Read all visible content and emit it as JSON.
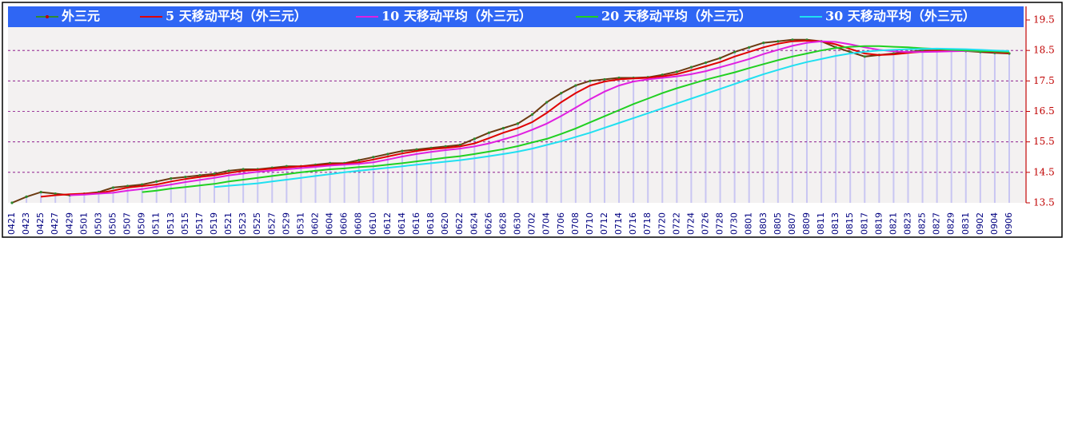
{
  "chart_data": {
    "type": "line",
    "categories": [
      "0421",
      "0423",
      "0425",
      "0427",
      "0429",
      "0501",
      "0503",
      "0505",
      "0507",
      "0509",
      "0511",
      "0513",
      "0515",
      "0517",
      "0519",
      "0521",
      "0523",
      "0525",
      "0527",
      "0529",
      "0531",
      "0602",
      "0604",
      "0606",
      "0608",
      "0610",
      "0612",
      "0614",
      "0616",
      "0618",
      "0620",
      "0622",
      "0624",
      "0626",
      "0628",
      "0630",
      "0702",
      "0704",
      "0706",
      "0708",
      "0710",
      "0712",
      "0714",
      "0716",
      "0718",
      "0720",
      "0722",
      "0724",
      "0726",
      "0728",
      "0730",
      "0801",
      "0803",
      "0805",
      "0807",
      "0809",
      "0811",
      "0813",
      "0815",
      "0817",
      "0819",
      "0821",
      "0823",
      "0825",
      "0827",
      "0829",
      "0831",
      "0902",
      "0904",
      "0906"
    ],
    "series": [
      {
        "name": "外三元",
        "color": "#6b3a10",
        "marker_color": "#2e8b2e",
        "values": [
          13.5,
          13.7,
          13.85,
          13.8,
          13.75,
          13.8,
          13.85,
          14.0,
          14.05,
          14.1,
          14.2,
          14.3,
          14.35,
          14.4,
          14.45,
          14.55,
          14.6,
          14.6,
          14.65,
          14.7,
          14.7,
          14.75,
          14.8,
          14.8,
          14.9,
          15.0,
          15.1,
          15.2,
          15.25,
          15.3,
          15.35,
          15.4,
          15.6,
          15.8,
          15.95,
          16.1,
          16.4,
          16.8,
          17.1,
          17.35,
          17.5,
          17.55,
          17.6,
          17.6,
          17.62,
          17.7,
          17.8,
          17.95,
          18.1,
          18.25,
          18.45,
          18.6,
          18.75,
          18.8,
          18.85,
          18.85,
          18.8,
          18.6,
          18.45,
          18.3,
          18.35,
          18.4,
          18.45,
          18.5,
          18.5,
          18.5,
          18.48,
          18.45,
          18.42,
          18.4
        ]
      },
      {
        "name": "5 天移动平均（外三元）",
        "color": "#e00000",
        "values": [
          null,
          null,
          13.7,
          13.75,
          13.78,
          13.8,
          13.82,
          13.9,
          14.0,
          14.05,
          14.1,
          14.2,
          14.28,
          14.35,
          14.4,
          14.48,
          14.55,
          14.58,
          14.62,
          14.66,
          14.7,
          14.72,
          14.76,
          14.78,
          14.83,
          14.92,
          15.02,
          15.12,
          15.2,
          15.26,
          15.3,
          15.35,
          15.45,
          15.62,
          15.8,
          15.95,
          16.15,
          16.45,
          16.8,
          17.1,
          17.35,
          17.48,
          17.55,
          17.58,
          17.6,
          17.65,
          17.72,
          17.85,
          17.98,
          18.12,
          18.3,
          18.45,
          18.6,
          18.72,
          18.8,
          18.82,
          18.8,
          18.7,
          18.55,
          18.4,
          18.35,
          18.37,
          18.42,
          18.46,
          18.48,
          18.5,
          18.5,
          18.48,
          18.45,
          18.42
        ]
      },
      {
        "name": "10 天移动平均（外三元）",
        "color": "#e020e0",
        "values": [
          null,
          null,
          null,
          null,
          13.75,
          13.77,
          13.8,
          13.83,
          13.9,
          13.95,
          14.03,
          14.1,
          14.18,
          14.25,
          14.32,
          14.4,
          14.46,
          14.52,
          14.56,
          14.6,
          14.64,
          14.68,
          14.72,
          14.75,
          14.78,
          14.83,
          14.92,
          15.02,
          15.1,
          15.17,
          15.23,
          15.28,
          15.35,
          15.45,
          15.58,
          15.72,
          15.9,
          16.1,
          16.35,
          16.62,
          16.9,
          17.15,
          17.35,
          17.48,
          17.55,
          17.6,
          17.65,
          17.72,
          17.82,
          17.95,
          18.08,
          18.22,
          18.38,
          18.52,
          18.65,
          18.75,
          18.8,
          18.78,
          18.7,
          18.6,
          18.52,
          18.47,
          18.45,
          18.45,
          18.46,
          18.47,
          18.48,
          18.48,
          18.47,
          18.45
        ]
      },
      {
        "name": "20 天移动平均（外三元）",
        "color": "#20d020",
        "values": [
          null,
          null,
          null,
          null,
          null,
          null,
          null,
          null,
          null,
          13.85,
          13.9,
          13.97,
          14.02,
          14.07,
          14.12,
          14.2,
          14.26,
          14.32,
          14.38,
          14.44,
          14.5,
          14.55,
          14.6,
          14.63,
          14.67,
          14.7,
          14.75,
          14.8,
          14.86,
          14.92,
          14.98,
          15.03,
          15.1,
          15.18,
          15.26,
          15.36,
          15.48,
          15.6,
          15.76,
          15.94,
          16.14,
          16.34,
          16.54,
          16.74,
          16.92,
          17.1,
          17.26,
          17.4,
          17.54,
          17.66,
          17.78,
          17.92,
          18.05,
          18.18,
          18.3,
          18.4,
          18.5,
          18.58,
          18.62,
          18.64,
          18.64,
          18.62,
          18.6,
          18.57,
          18.55,
          18.52,
          18.5,
          18.48,
          18.47,
          18.45
        ]
      },
      {
        "name": "30 天移动平均（外三元）",
        "color": "#20e0f0",
        "values": [
          null,
          null,
          null,
          null,
          null,
          null,
          null,
          null,
          null,
          null,
          null,
          null,
          null,
          null,
          14.02,
          14.06,
          14.1,
          14.14,
          14.2,
          14.26,
          14.32,
          14.38,
          14.44,
          14.5,
          14.55,
          14.6,
          14.65,
          14.7,
          14.75,
          14.8,
          14.85,
          14.9,
          14.96,
          15.03,
          15.1,
          15.18,
          15.28,
          15.4,
          15.52,
          15.66,
          15.8,
          15.96,
          16.12,
          16.28,
          16.44,
          16.6,
          16.76,
          16.92,
          17.08,
          17.24,
          17.4,
          17.56,
          17.72,
          17.86,
          18.0,
          18.12,
          18.22,
          18.32,
          18.4,
          18.46,
          18.5,
          18.52,
          18.54,
          18.55,
          18.56,
          18.55,
          18.54,
          18.52,
          18.5,
          18.48
        ]
      }
    ],
    "ylim": [
      13.5,
      19.5
    ],
    "yticks": [
      13.5,
      14.5,
      15.5,
      16.5,
      17.5,
      18.5,
      19.5
    ],
    "grid": true,
    "legend": "top"
  }
}
